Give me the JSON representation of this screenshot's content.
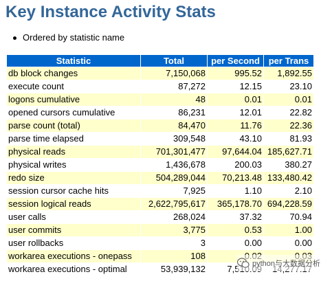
{
  "page": {
    "title": "Key Instance Activity Stats",
    "notes": [
      "Ordered by statistic name"
    ]
  },
  "table": {
    "headers": [
      "Statistic",
      "Total",
      "per Second",
      "per Trans"
    ],
    "rows": [
      [
        "db block changes",
        "7,150,068",
        "995.52",
        "1,892.55"
      ],
      [
        "execute count",
        "87,272",
        "12.15",
        "23.10"
      ],
      [
        "logons cumulative",
        "48",
        "0.01",
        "0.01"
      ],
      [
        "opened cursors cumulative",
        "86,231",
        "12.01",
        "22.82"
      ],
      [
        "parse count (total)",
        "84,470",
        "11.76",
        "22.36"
      ],
      [
        "parse time elapsed",
        "309,548",
        "43.10",
        "81.93"
      ],
      [
        "physical reads",
        "701,301,477",
        "97,644.04",
        "185,627.71"
      ],
      [
        "physical writes",
        "1,436,678",
        "200.03",
        "380.27"
      ],
      [
        "redo size",
        "504,289,044",
        "70,213.48",
        "133,480.42"
      ],
      [
        "session cursor cache hits",
        "7,925",
        "1.10",
        "2.10"
      ],
      [
        "session logical reads",
        "2,622,795,617",
        "365,178.70",
        "694,228.59"
      ],
      [
        "user calls",
        "268,024",
        "37.32",
        "70.94"
      ],
      [
        "user commits",
        "3,775",
        "0.53",
        "1.00"
      ],
      [
        "user rollbacks",
        "3",
        "0.00",
        "0.00"
      ],
      [
        "workarea executions - onepass",
        "108",
        "0.02",
        "0.03"
      ],
      [
        "workarea executions - optimal",
        "53,939,132",
        "7,510.09",
        "14,277.17"
      ]
    ]
  },
  "watermark": {
    "text": "python与大数据分析",
    "icon": "wechat-icon"
  },
  "colors": {
    "title": "#336699",
    "header_bg": "#0066cc",
    "header_text": "#ffffff",
    "row_highlight": "#ffffcc"
  }
}
